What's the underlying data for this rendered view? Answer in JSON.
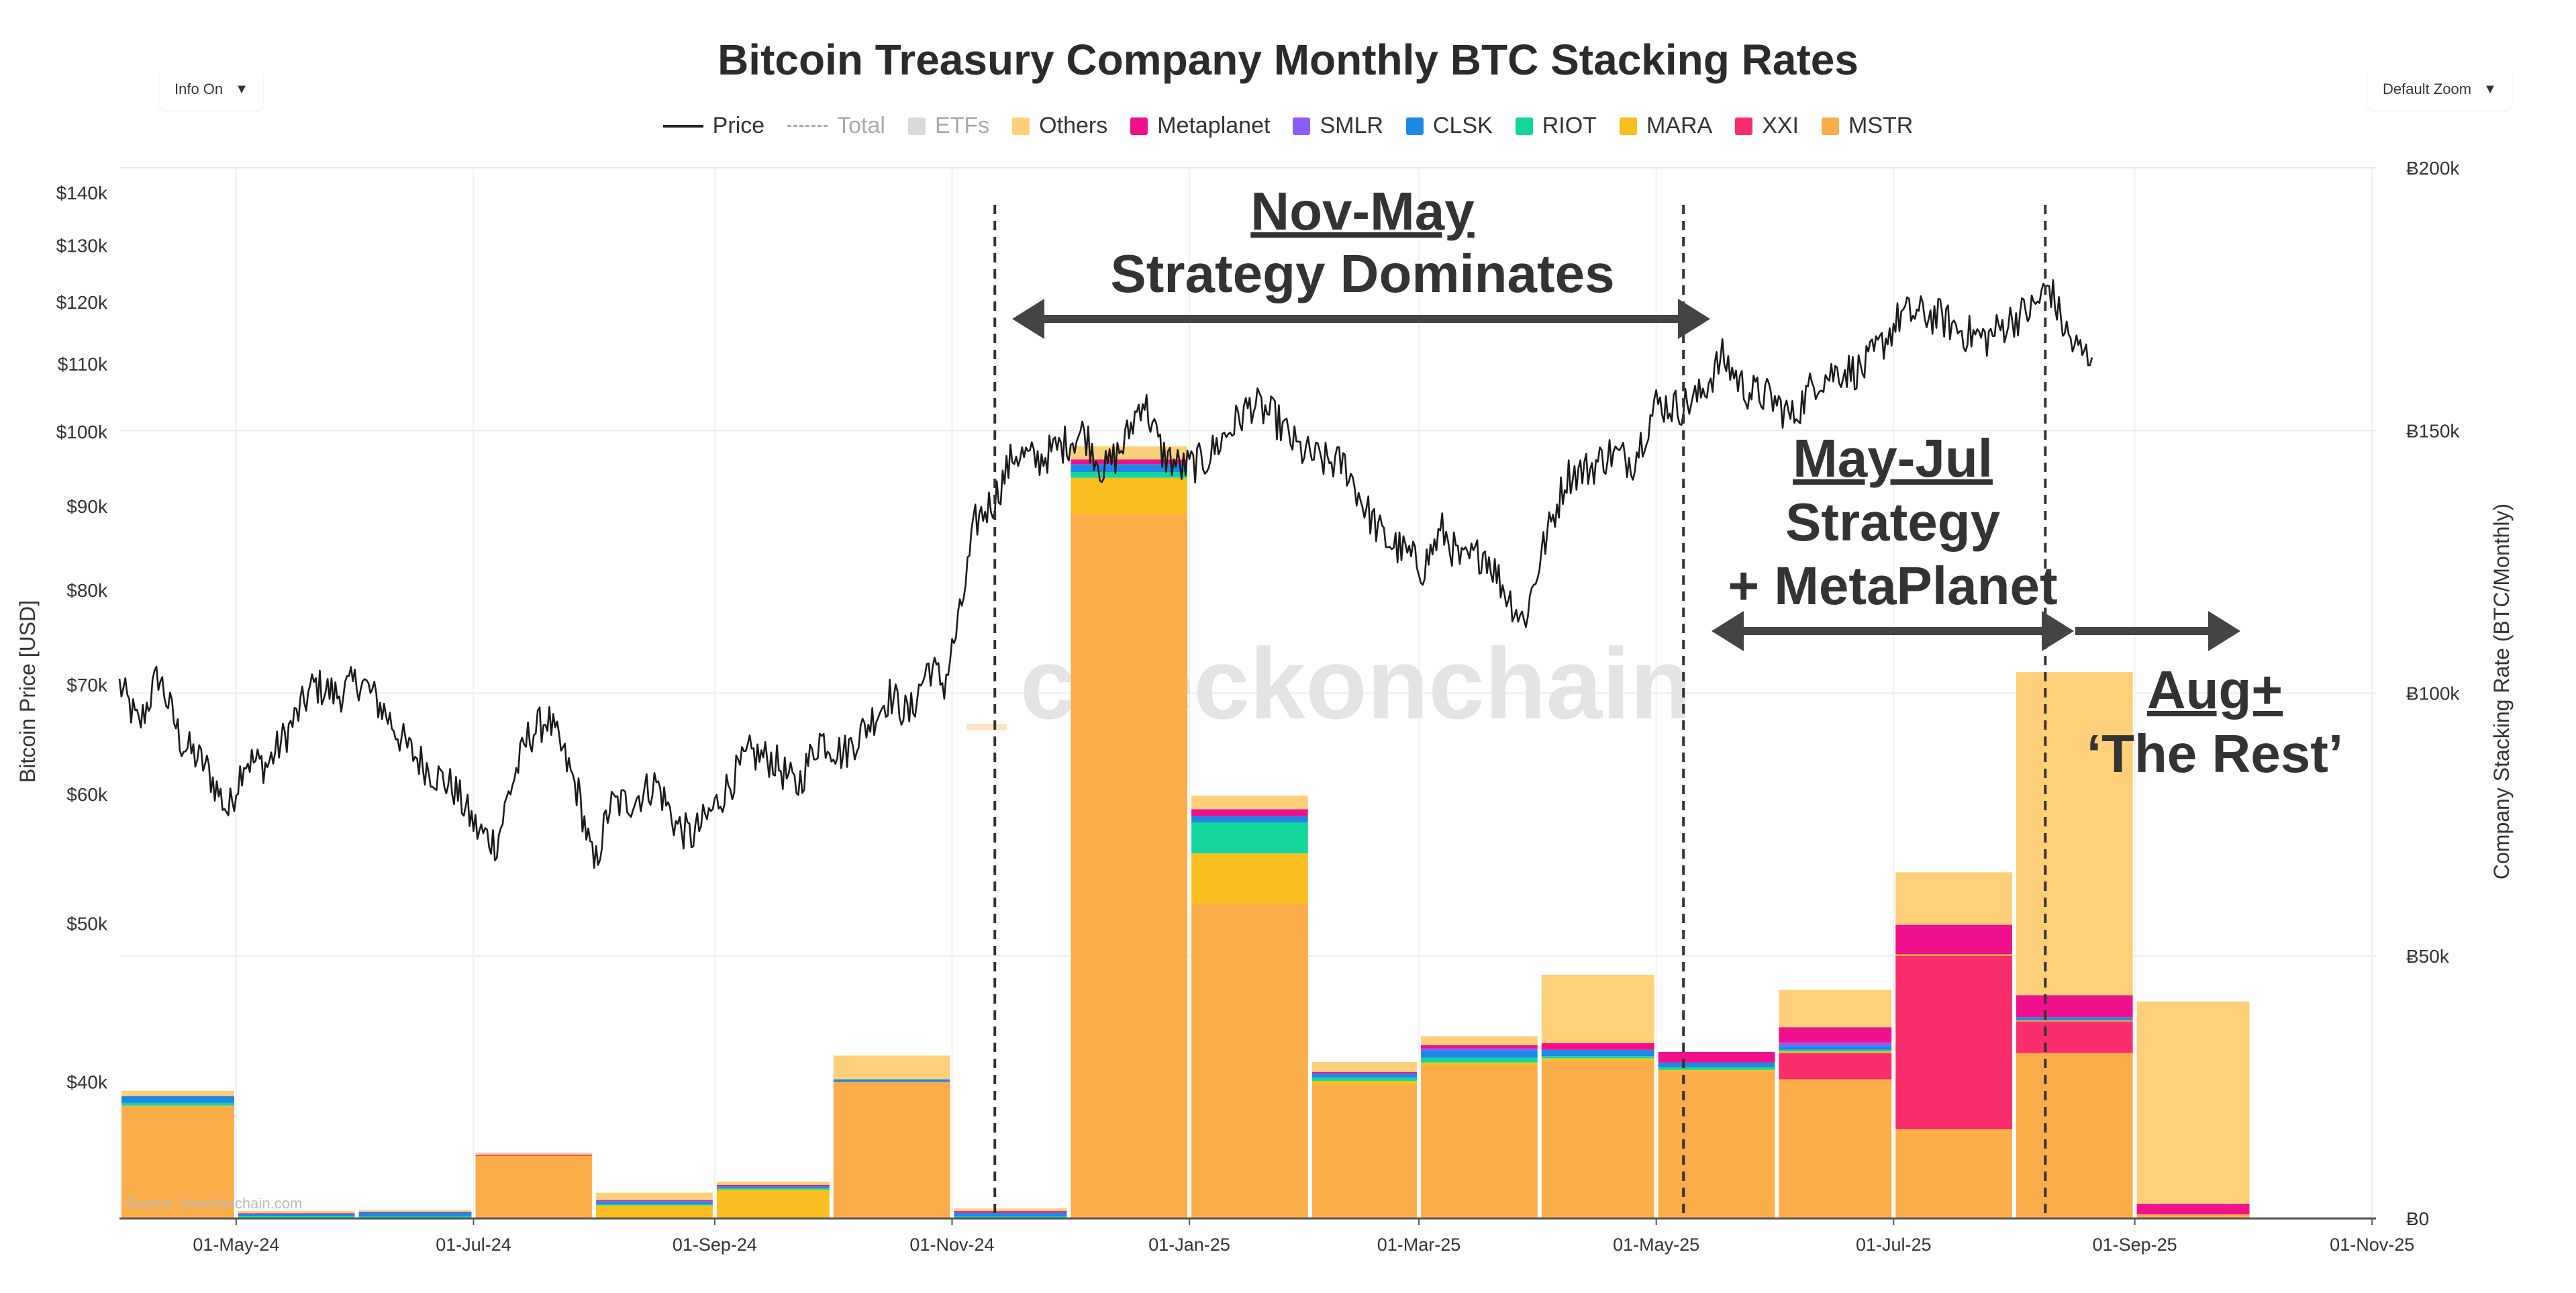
{
  "controls": {
    "info_label": "Info On",
    "zoom_label": "Default Zoom",
    "caret": "▼"
  },
  "legend": [
    {
      "label": "Price",
      "kind": "line",
      "color": "#222222",
      "dim": false
    },
    {
      "label": "Total",
      "kind": "dash",
      "color": "#aaaaaa",
      "dim": true
    },
    {
      "label": "ETFs",
      "kind": "box",
      "color": "#d9d9d9",
      "dim": true
    },
    {
      "label": "Others",
      "kind": "box",
      "color": "#fdd079",
      "dim": false
    },
    {
      "label": "Metaplanet",
      "kind": "box",
      "color": "#f0108c",
      "dim": false
    },
    {
      "label": "SMLR",
      "kind": "box",
      "color": "#8b5cf6",
      "dim": false
    },
    {
      "label": "CLSK",
      "kind": "box",
      "color": "#1e88e5",
      "dim": false
    },
    {
      "label": "RIOT",
      "kind": "box",
      "color": "#12d69b",
      "dim": false
    },
    {
      "label": "MARA",
      "kind": "box",
      "color": "#f9be1f",
      "dim": false
    },
    {
      "label": "XXI",
      "kind": "box",
      "color": "#fb2e6d",
      "dim": false
    },
    {
      "label": "MSTR",
      "kind": "box",
      "color": "#fbad4a",
      "dim": false
    }
  ],
  "watermark": "checkonchain",
  "source": "Source: checkonchain.com",
  "annotations": {
    "nov_may_title": "Nov-May",
    "nov_may_sub": "Strategy Dominates",
    "may_jul_title": "May-Jul",
    "may_jul_line2": "Strategy",
    "may_jul_line3": "+ MetaPlanet",
    "aug_title": "Aug+",
    "aug_sub": "‘The Rest’"
  },
  "chart_data": {
    "type": "bar",
    "title": "Bitcoin Treasury Company Monthly BTC Stacking Rates",
    "ylabel_left": "Bitcoin Price [USD]",
    "ylabel_right": "Company Stacking Rate (BTC/Monthly)",
    "left_axis": {
      "scale": "log",
      "ylim": [
        33000,
        145000
      ],
      "ticks": [
        {
          "v": 140000,
          "label": "$140k"
        },
        {
          "v": 130000,
          "label": "$130k"
        },
        {
          "v": 120000,
          "label": "$120k"
        },
        {
          "v": 110000,
          "label": "$110k"
        },
        {
          "v": 100000,
          "label": "$100k"
        },
        {
          "v": 90000,
          "label": "$90k"
        },
        {
          "v": 80000,
          "label": "$80k"
        },
        {
          "v": 70000,
          "label": "$70k"
        },
        {
          "v": 60000,
          "label": "$60k"
        },
        {
          "v": 50000,
          "label": "$50k"
        },
        {
          "v": 40000,
          "label": "$40k"
        }
      ]
    },
    "right_axis": {
      "scale": "linear",
      "ylim": [
        0,
        200000
      ],
      "ticks": [
        {
          "v": 200000,
          "label": "Ƀ200k"
        },
        {
          "v": 150000,
          "label": "Ƀ150k"
        },
        {
          "v": 100000,
          "label": "Ƀ100k"
        },
        {
          "v": 50000,
          "label": "Ƀ50k"
        },
        {
          "v": 0,
          "label": "Ƀ0"
        }
      ]
    },
    "x_range_days": [
      0,
      580
    ],
    "x_ticks": [
      {
        "d": 30,
        "label": "01-May-24"
      },
      {
        "d": 91,
        "label": "01-Jul-24"
      },
      {
        "d": 153,
        "label": "01-Sep-24"
      },
      {
        "d": 214,
        "label": "01-Nov-24"
      },
      {
        "d": 275,
        "label": "01-Jan-25"
      },
      {
        "d": 334,
        "label": "01-Mar-25"
      },
      {
        "d": 395,
        "label": "01-May-25"
      },
      {
        "d": 456,
        "label": "01-Jul-25"
      },
      {
        "d": 518,
        "label": "01-Sep-25"
      },
      {
        "d": 579,
        "label": "01-Nov-25"
      }
    ],
    "vlines_days": [
      225,
      402,
      495
    ],
    "bar_series": [
      "MSTR",
      "XXI",
      "MARA",
      "RIOT",
      "CLSK",
      "SMLR",
      "Metaplanet",
      "Others"
    ],
    "series_colors": {
      "MSTR": "#fbad4a",
      "XXI": "#fb2e6d",
      "MARA": "#f9be1f",
      "RIOT": "#12d69b",
      "CLSK": "#1e88e5",
      "SMLR": "#8b5cf6",
      "Metaplanet": "#f0108c",
      "Others": "#fdd079"
    },
    "bars": [
      {
        "month": "Apr-24",
        "start": 0,
        "end": 30,
        "MSTR": 21500,
        "XXI": 0,
        "MARA": 0,
        "RIOT": 500,
        "CLSK": 1300,
        "SMLR": 0,
        "Metaplanet": 0,
        "Others": 1000
      },
      {
        "month": "May-24",
        "start": 30,
        "end": 61,
        "MSTR": 0,
        "XXI": 0,
        "MARA": 0,
        "RIOT": 500,
        "CLSK": 400,
        "SMLR": 0,
        "Metaplanet": 100,
        "Others": 400
      },
      {
        "month": "Jun-24",
        "start": 61,
        "end": 91,
        "MSTR": 0,
        "XXI": 0,
        "MARA": 0,
        "RIOT": 400,
        "CLSK": 800,
        "SMLR": 0,
        "Metaplanet": 100,
        "Others": 300
      },
      {
        "month": "Jul-24",
        "start": 91,
        "end": 122,
        "MSTR": 11900,
        "XXI": 0,
        "MARA": 0,
        "RIOT": 0,
        "CLSK": 0,
        "SMLR": 0,
        "Metaplanet": 200,
        "Others": 400
      },
      {
        "month": "Aug-24",
        "start": 122,
        "end": 153,
        "MSTR": 0,
        "XXI": 0,
        "MARA": 2500,
        "RIOT": 200,
        "CLSK": 600,
        "SMLR": 0,
        "Metaplanet": 200,
        "Others": 1400
      },
      {
        "month": "Sep-24",
        "start": 153,
        "end": 183,
        "MSTR": 0,
        "XXI": 0,
        "MARA": 5500,
        "RIOT": 300,
        "CLSK": 300,
        "SMLR": 0,
        "Metaplanet": 300,
        "Others": 600
      },
      {
        "month": "Oct-24",
        "start": 183,
        "end": 214,
        "MSTR": 26000,
        "XXI": 0,
        "MARA": 0,
        "RIOT": 0,
        "CLSK": 500,
        "SMLR": 0,
        "Metaplanet": 0,
        "Others": 4500
      },
      {
        "month": "Nov-24",
        "start": 214,
        "end": 244,
        "MSTR": 0,
        "XXI": 0,
        "MARA": 0,
        "RIOT": 400,
        "CLSK": 700,
        "SMLR": 0,
        "Metaplanet": 300,
        "Others": 500
      },
      {
        "month": "Dec-24",
        "start": 244,
        "end": 275,
        "MSTR": 134000,
        "XXI": 0,
        "MARA": 7000,
        "RIOT": 1100,
        "CLSK": 1500,
        "SMLR": 0,
        "Metaplanet": 900,
        "Others": 2500
      },
      {
        "month": "Jan-25",
        "start": 275,
        "end": 306,
        "MSTR": 60000,
        "XXI": 0,
        "MARA": 9500,
        "RIOT": 5900,
        "CLSK": 1200,
        "SMLR": 0,
        "Metaplanet": 1300,
        "Others": 2600
      },
      {
        "month": "Feb-25",
        "start": 306,
        "end": 334,
        "MSTR": 25500,
        "XXI": 0,
        "MARA": 700,
        "RIOT": 600,
        "CLSK": 800,
        "SMLR": 0,
        "Metaplanet": 300,
        "Others": 1900
      },
      {
        "month": "Mar-25",
        "start": 334,
        "end": 365,
        "MSTR": 29000,
        "XXI": 0,
        "MARA": 700,
        "RIOT": 900,
        "CLSK": 1400,
        "SMLR": 400,
        "Metaplanet": 600,
        "Others": 1700
      },
      {
        "month": "Apr-25",
        "start": 365,
        "end": 395,
        "MSTR": 30000,
        "XXI": 0,
        "MARA": 500,
        "RIOT": 400,
        "CLSK": 1200,
        "SMLR": 0,
        "Metaplanet": 1300,
        "Others": 13000
      },
      {
        "month": "May-25",
        "start": 395,
        "end": 426,
        "MSTR": 28000,
        "XXI": 0,
        "MARA": 300,
        "RIOT": 500,
        "CLSK": 900,
        "SMLR": 0,
        "Metaplanet": 2000,
        "Others": 0
      },
      {
        "month": "Jun-25",
        "start": 426,
        "end": 456,
        "MSTR": 26500,
        "XXI": 5000,
        "MARA": 300,
        "RIOT": 300,
        "CLSK": 700,
        "SMLR": 700,
        "Metaplanet": 2900,
        "Others": 7100
      },
      {
        "month": "Jul-25",
        "start": 456,
        "end": 487,
        "MSTR": 17000,
        "XXI": 33000,
        "MARA": 300,
        "RIOT": 0,
        "CLSK": 0,
        "SMLR": 0,
        "Metaplanet": 5600,
        "Others": 10000
      },
      {
        "month": "Aug-25",
        "start": 487,
        "end": 518,
        "MSTR": 31500,
        "XXI": 6000,
        "MARA": 200,
        "RIOT": 0,
        "CLSK": 600,
        "SMLR": 0,
        "Metaplanet": 4200,
        "Others": 61500
      },
      {
        "month": "Sep-25",
        "start": 518,
        "end": 548,
        "MSTR": 800,
        "XXI": 0,
        "MARA": 0,
        "RIOT": 0,
        "CLSK": 0,
        "SMLR": 0,
        "Metaplanet": 2000,
        "Others": 38500
      }
    ],
    "price_anchors": [
      [
        0,
        70000
      ],
      [
        5,
        66000
      ],
      [
        10,
        71000
      ],
      [
        16,
        64500
      ],
      [
        22,
        62500
      ],
      [
        28,
        58500
      ],
      [
        32,
        63000
      ],
      [
        38,
        62500
      ],
      [
        44,
        66000
      ],
      [
        50,
        70000
      ],
      [
        56,
        69000
      ],
      [
        62,
        70500
      ],
      [
        68,
        67500
      ],
      [
        74,
        64000
      ],
      [
        80,
        62000
      ],
      [
        86,
        60500
      ],
      [
        92,
        57000
      ],
      [
        97,
        56000
      ],
      [
        100,
        60000
      ],
      [
        105,
        65000
      ],
      [
        110,
        66800
      ],
      [
        114,
        63500
      ],
      [
        118,
        60000
      ],
      [
        122,
        54000
      ],
      [
        126,
        59000
      ],
      [
        132,
        59500
      ],
      [
        138,
        61000
      ],
      [
        143,
        57500
      ],
      [
        147,
        56500
      ],
      [
        151,
        58000
      ],
      [
        156,
        60500
      ],
      [
        162,
        63500
      ],
      [
        168,
        63000
      ],
      [
        174,
        60500
      ],
      [
        180,
        65000
      ],
      [
        186,
        63500
      ],
      [
        192,
        66000
      ],
      [
        198,
        69000
      ],
      [
        203,
        67000
      ],
      [
        208,
        72000
      ],
      [
        212,
        70000
      ],
      [
        216,
        77000
      ],
      [
        220,
        88000
      ],
      [
        225,
        91000
      ],
      [
        230,
        97000
      ],
      [
        236,
        96000
      ],
      [
        242,
        98000
      ],
      [
        248,
        100000
      ],
      [
        253,
        94500
      ],
      [
        258,
        98000
      ],
      [
        263,
        105000
      ],
      [
        268,
        97000
      ],
      [
        273,
        95000
      ],
      [
        279,
        96000
      ],
      [
        285,
        100000
      ],
      [
        291,
        104000
      ],
      [
        297,
        102000
      ],
      [
        303,
        97500
      ],
      [
        309,
        96000
      ],
      [
        315,
        95500
      ],
      [
        320,
        90000
      ],
      [
        325,
        86000
      ],
      [
        330,
        84500
      ],
      [
        335,
        82500
      ],
      [
        340,
        87000
      ],
      [
        345,
        83000
      ],
      [
        351,
        84500
      ],
      [
        356,
        80000
      ],
      [
        361,
        76500
      ],
      [
        366,
        85000
      ],
      [
        372,
        94000
      ],
      [
        378,
        95000
      ],
      [
        383,
        97000
      ],
      [
        389,
        96000
      ],
      [
        395,
        104000
      ],
      [
        401,
        103500
      ],
      [
        406,
        105000
      ],
      [
        412,
        111000
      ],
      [
        418,
        106000
      ],
      [
        424,
        105000
      ],
      [
        430,
        102000
      ],
      [
        436,
        107500
      ],
      [
        442,
        109000
      ],
      [
        448,
        109000
      ],
      [
        454,
        114000
      ],
      [
        458,
        118000
      ],
      [
        463,
        118000
      ],
      [
        468,
        117500
      ],
      [
        474,
        115000
      ],
      [
        480,
        114000
      ],
      [
        486,
        117000
      ],
      [
        492,
        119000
      ],
      [
        496,
        123000
      ],
      [
        499,
        117000
      ],
      [
        502,
        113000
      ],
      [
        505,
        111500
      ],
      [
        507,
        111000
      ]
    ]
  }
}
